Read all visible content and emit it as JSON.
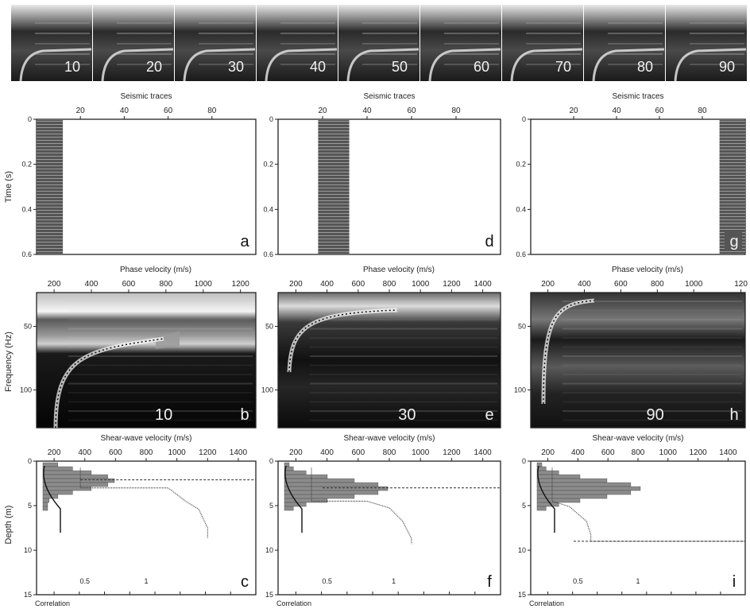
{
  "strip": {
    "labels": [
      "10",
      "20",
      "30",
      "40",
      "50",
      "60",
      "70",
      "80",
      "90"
    ]
  },
  "seismic": {
    "x_title": "Seismic traces",
    "x_ticks": [
      "20",
      "40",
      "60",
      "80"
    ],
    "y_title": "Time (s)",
    "y_ticks": [
      "0",
      "0.2",
      "0.4",
      "0.6"
    ],
    "panels": [
      {
        "letter": "a",
        "band_start": 0,
        "band_end": 12
      },
      {
        "letter": "d",
        "band_start": 18,
        "band_end": 32
      },
      {
        "letter": "g",
        "band_start": 88,
        "band_end": 100
      }
    ]
  },
  "dispersion": {
    "x_title": "Phase velocity (m/s)",
    "y_title": "Frequency (Hz)",
    "panels": [
      {
        "letter": "b",
        "label": "10",
        "x_ticks": [
          "200",
          "400",
          "600",
          "800",
          "1000",
          "1200"
        ],
        "y_ticks": [
          "50",
          "100"
        ]
      },
      {
        "letter": "e",
        "label": "30",
        "x_ticks": [
          "200",
          "400",
          "600",
          "800",
          "1000",
          "1200",
          "1400"
        ],
        "y_ticks": [
          "50",
          "100"
        ]
      },
      {
        "letter": "h",
        "label": "90",
        "x_ticks": [
          "200",
          "400",
          "600",
          "800",
          "1000",
          "120"
        ],
        "y_ticks": [
          "50",
          "100"
        ]
      }
    ]
  },
  "profiles": {
    "x_title": "Shear-wave velocity (m/s)",
    "x_ticks": [
      "200",
      "400",
      "600",
      "800",
      "1000",
      "1200",
      "1400"
    ],
    "y_title": "Depth (m)",
    "y_ticks": [
      "0",
      "5",
      "10",
      "15"
    ],
    "corr_title": "Correlation",
    "corr_ticks": [
      "0.5",
      "1"
    ],
    "panels": [
      {
        "letter": "c"
      },
      {
        "letter": "f"
      },
      {
        "letter": "i"
      }
    ]
  }
}
